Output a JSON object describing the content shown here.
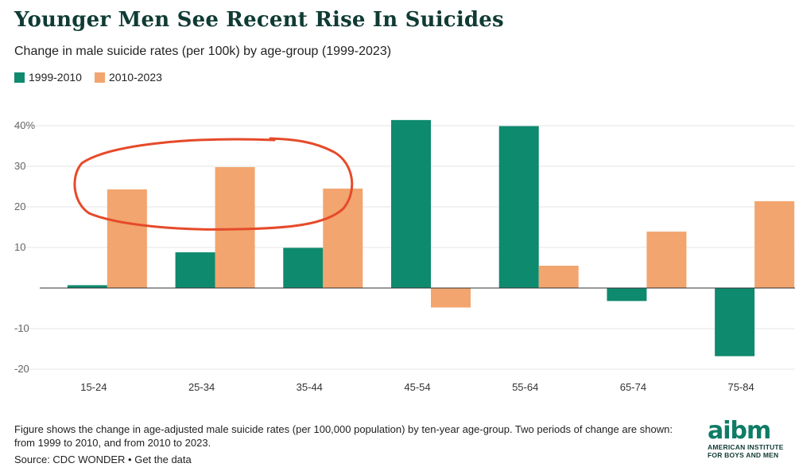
{
  "header": {
    "title": "Younger Men See Recent Rise In Suicides",
    "subtitle": "Change in male suicide rates (per 100k) by age-group (1999-2023)"
  },
  "legend": [
    {
      "label": "1999-2010",
      "color": "#0e8a6e"
    },
    {
      "label": "2010-2023",
      "color": "#f2a56e"
    }
  ],
  "chart_data": {
    "type": "bar",
    "categories": [
      "15-24",
      "25-34",
      "35-44",
      "45-54",
      "55-64",
      "65-74",
      "75-84"
    ],
    "series": [
      {
        "name": "1999-2010",
        "color": "#0e8a6e",
        "values": [
          0.7,
          8.8,
          9.9,
          41.4,
          39.9,
          -3.2,
          -16.8
        ]
      },
      {
        "name": "2010-2023",
        "color": "#f2a56e",
        "values": [
          24.3,
          29.8,
          24.5,
          -4.8,
          5.5,
          13.9,
          21.4
        ]
      }
    ],
    "yticks": [
      40,
      30,
      20,
      10,
      -10,
      -20
    ],
    "ytick_labels": [
      "40%",
      "30",
      "20",
      "10",
      "-10",
      "-20"
    ],
    "ylim": [
      -22,
      43
    ],
    "grid": true,
    "legend_position": "top-left",
    "annotation": "red hand-drawn ellipse circling the 2010-2023 bars for 15-24, 25-34 and 35-44"
  },
  "footer": {
    "note": "Figure shows the change in age-adjusted male suicide rates (per 100,000 population) by ten-year age-group. Two periods of change are shown: from 1999 to 2010, and from 2010 to 2023.",
    "source": "Source: CDC WONDER",
    "separator": " • ",
    "get_data": "Get the data"
  },
  "logo": {
    "word": "aibm",
    "line1": "AMERICAN INSTITUTE",
    "line2": "FOR BOYS AND MEN"
  }
}
